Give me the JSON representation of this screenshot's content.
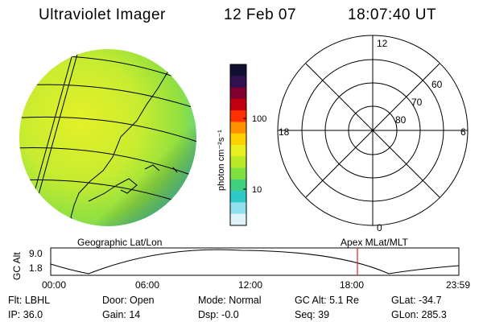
{
  "header": {
    "title": "Ultraviolet Imager",
    "date": "12 Feb 07",
    "time": "18:07:40 UT"
  },
  "colorbar": {
    "unit_label": "photon cm⁻²s⁻¹",
    "ticks": [
      "100",
      "10"
    ],
    "colors": [
      "#101030",
      "#301050",
      "#800030",
      "#c00010",
      "#ff3000",
      "#ff9000",
      "#ffd000",
      "#e8f020",
      "#b8ea28",
      "#80e040",
      "#40d080",
      "#30c8c8",
      "#90e0f0",
      "#e0f4f8"
    ]
  },
  "polar_plot": {
    "mlt_labels": {
      "top": "12",
      "left": "18",
      "right": "6",
      "bottom": "0"
    },
    "lat_labels": [
      "60",
      "70",
      "80"
    ]
  },
  "captions": {
    "left": "Geographic Lat/Lon",
    "right": "Apex MLat/MLT"
  },
  "timeline": {
    "ylabel": "GC Alt",
    "yticks": [
      "9.0",
      "1.8"
    ],
    "xticks": [
      "00:00",
      "06:00",
      "12:00",
      "18:00",
      "23:59"
    ],
    "marker_time": "18:07"
  },
  "info": {
    "flt": "Flt: LBHL",
    "ip": "IP: 36.0",
    "door": "Door: Open",
    "gain": "Gain: 14",
    "mode": "Mode: Normal",
    "dsp": "Dsp:   -0.0",
    "gcalt": "GC Alt: 5.1 Re",
    "seq": "Seq: 39",
    "glat": "GLat: -34.7",
    "glon": "GLon: 285.3"
  }
}
